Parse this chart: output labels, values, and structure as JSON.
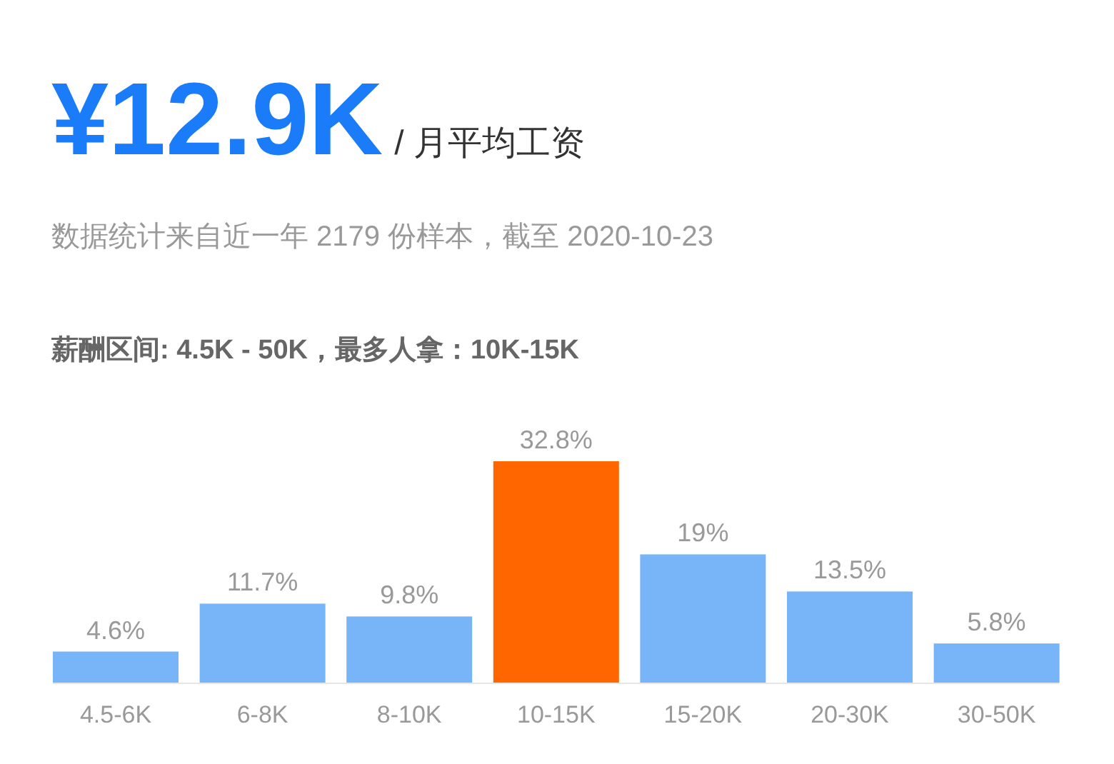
{
  "chart_data": {
    "type": "bar",
    "title": "¥12.9K",
    "subtitle": "/ 月平均工资",
    "annotations": [
      "数据统计来自近一年 2179 份样本，截至 2020-10-23",
      "**薪酬区间: 4.5K - 50K，最多人拿：10K-15K**"
    ],
    "categories": [
      "4.5-6K",
      "6-8K",
      "8-10K",
      "10-15K",
      "15-20K",
      "20-30K",
      "30-50K"
    ],
    "values": [
      4.6,
      11.7,
      9.8,
      32.8,
      19,
      13.5,
      5.8
    ],
    "colors": [
      "#78b4f8",
      "#78b4f8",
      "#78b4f8",
      "#ff6600",
      "#78b4f8",
      "#78b4f8",
      "#78b4f8"
    ],
    "value_labels": [
      "4.6%",
      "11.7%",
      "9.8%",
      "32.8%",
      "19%",
      "13.5%",
      "5.8%"
    ]
  }
}
